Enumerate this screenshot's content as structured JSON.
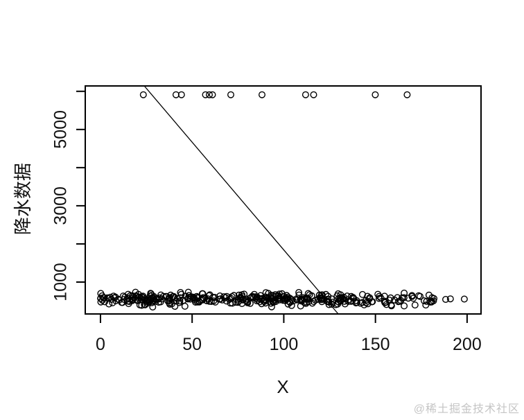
{
  "chart_data": {
    "type": "scatter",
    "title": "",
    "xlabel": "X",
    "ylabel": "降水数据",
    "xlim": [
      -8.3,
      207.6
    ],
    "ylim": [
      164,
      6141
    ],
    "grid": false,
    "legend": null,
    "frame_color": "#000000",
    "point_style": {
      "shape": "open-circle",
      "color": "#000000",
      "radius": 4.3,
      "stroke_width": 1.4
    },
    "x_ticks": [
      {
        "v": 0,
        "label": "0"
      },
      {
        "v": 50,
        "label": "50"
      },
      {
        "v": 100,
        "label": "100"
      },
      {
        "v": 150,
        "label": "150"
      },
      {
        "v": 200,
        "label": "200"
      }
    ],
    "y_ticks": [
      {
        "v": 1000,
        "label": "1000"
      },
      {
        "v": 2000,
        "label": ""
      },
      {
        "v": 3000,
        "label": "3000"
      },
      {
        "v": 4000,
        "label": ""
      },
      {
        "v": 5000,
        "label": "5000"
      },
      {
        "v": 6000,
        "label": ""
      }
    ],
    "outlier_points": {
      "y": 5910,
      "x": [
        23.4,
        41.2,
        44.2,
        57.3,
        59.4,
        61.1,
        71.1,
        88.1,
        111.9,
        116.3,
        149.9,
        167.3
      ]
    },
    "sparse_right_points": [
      [
        188.3,
        545
      ],
      [
        190.9,
        560
      ],
      [
        198.5,
        555
      ]
    ],
    "dense_band": {
      "count": 380,
      "x_segments": [
        [
          0,
          120,
          0.72
        ],
        [
          120,
          182,
          1.0
        ]
      ],
      "y_center": 545,
      "y_half_range": 230,
      "seed": 7,
      "note": "dense band of ~380 overlapping open circles, y values ≈ 350–760; individual values not resolvable at screenshot resolution"
    },
    "regression_line": {
      "intercept": 7492,
      "slope": -56.5
    }
  },
  "watermark": {
    "text": "@稀土掘金技术社区",
    "color": "#c5c5c5"
  }
}
